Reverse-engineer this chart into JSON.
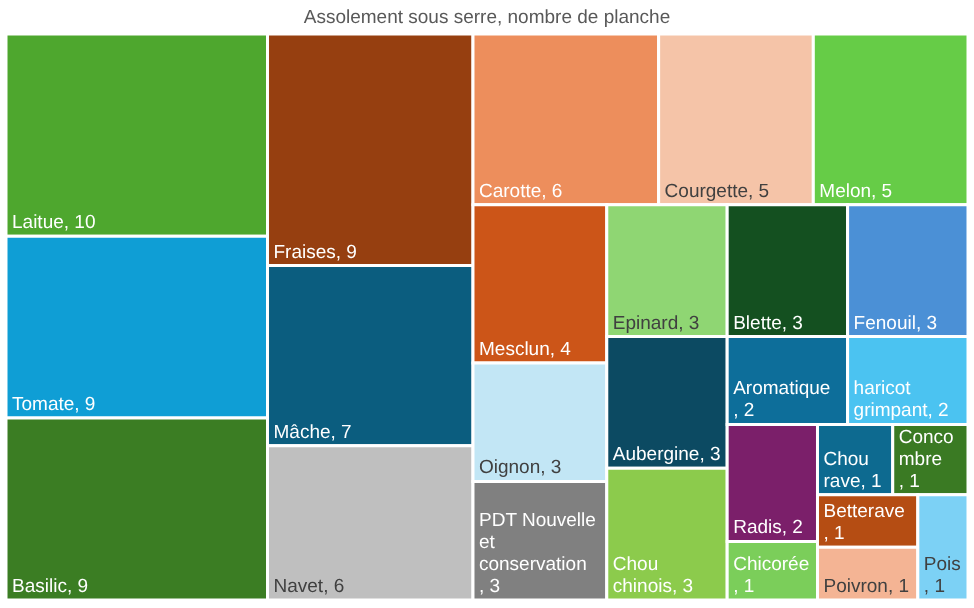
{
  "chart_data": {
    "type": "other",
    "title": "Assolement sous serre, nombre de planche",
    "categories": [
      "Laitue",
      "Tomate",
      "Basilic",
      "Fraises",
      "Mâche",
      "Navet",
      "Carotte",
      "Courgette",
      "Melon",
      "Mesclun",
      "Oignon",
      "PDT Nouvelle et conservation",
      "Epinard",
      "Blette",
      "Fenouil",
      "Aubergine",
      "Chou chinois",
      "Aromatique",
      "haricot grimpant",
      "Radis",
      "Chicorée",
      "Chou rave",
      "Concombre",
      "Betterave",
      "Poivron",
      "Pois"
    ],
    "values": [
      10,
      9,
      9,
      9,
      7,
      6,
      6,
      5,
      5,
      4,
      3,
      3,
      3,
      3,
      3,
      3,
      3,
      2,
      2,
      2,
      1,
      1,
      1,
      1,
      1,
      1
    ],
    "value_labels": [
      ", 10",
      ", 9",
      ", 9",
      ", 9",
      ", 7",
      ", 6",
      ", 6",
      ", 5",
      ", 5",
      ", 4",
      ", 3",
      ", 3",
      ", 3",
      ", 3",
      ", 3",
      ", 3",
      ", 3",
      ", 2",
      ", 2",
      ", 2",
      ", 1",
      ", 1",
      ", 1",
      ", 1",
      ", 1",
      ", 1"
    ],
    "colors": [
      "#4ea72e",
      "#0f9ed5",
      "#3b7d23",
      "#963f10",
      "#0b5d7f",
      "#bfbfbf",
      "#ed8e5c",
      "#f5c4a8",
      "#66cc47",
      "#cc5518",
      "#c2e6f5",
      "#808080",
      "#8fd673",
      "#145020",
      "#4b90d6",
      "#0c4a62",
      "#8ccb4c",
      "#0d6e9a",
      "#4bc3f1",
      "#7b1f6a",
      "#7bce5a",
      "#0d6a90",
      "#3a7a23",
      "#b54d13",
      "#f4b494",
      "#7cd1f5"
    ]
  }
}
